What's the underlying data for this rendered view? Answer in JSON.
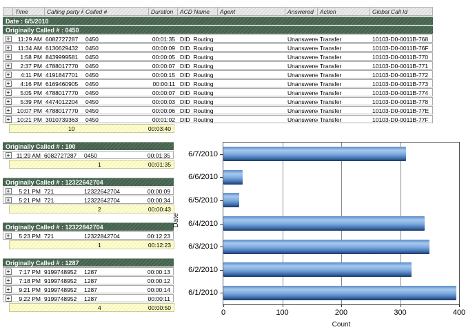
{
  "icons": {
    "expand": "+"
  },
  "colors": {
    "group_header_green": "#4a6a53",
    "summary_yellow": "#ffffcf",
    "table_header_gray": "#e7e7e7",
    "bar_blue": "#5b8cc8"
  },
  "main_table": {
    "columns": [
      "Time",
      "Calling party #",
      "Called #",
      "Duration",
      "ACD Name",
      "Agent",
      "Answered",
      "Action",
      "Global Call Id"
    ],
    "date_label": "Date : 6/5/2010",
    "group_label": "Originally Called # : 0450",
    "rows": [
      [
        "11:29 AM",
        "6082727287",
        "0450",
        "00:01:35",
        "DID_Routing",
        "",
        "Unanswered",
        "Transfer",
        "10103-D0-0011B-768"
      ],
      [
        "11:34 AM",
        "6130629432",
        "0450",
        "00:00:09",
        "DID_Routing",
        "",
        "Unanswered",
        "Transfer",
        "10103-D0-0011B-76F"
      ],
      [
        "1:58 PM",
        "8439999581",
        "0450",
        "00:00:05",
        "DID_Routing",
        "",
        "Unanswered",
        "Transfer",
        "10103-D0-0011B-770"
      ],
      [
        "2:37 PM",
        "4788017770",
        "0450",
        "00:00:07",
        "DID_Routing",
        "",
        "Unanswered",
        "Transfer",
        "10103-D0-0011B-771"
      ],
      [
        "4:11 PM",
        "4191847701",
        "0450",
        "00:00:15",
        "DID_Routing",
        "",
        "Unanswered",
        "Transfer",
        "10103-D0-0011B-772"
      ],
      [
        "4:16 PM",
        "6169460905",
        "0450",
        "00:00:11",
        "DID_Routing",
        "",
        "Unanswered",
        "Transfer",
        "10103-D0-0011B-773"
      ],
      [
        "5:05 PM",
        "4788017770",
        "0450",
        "00:00:07",
        "DID_Routing",
        "",
        "Unanswered",
        "Transfer",
        "10103-D0-0011B-774"
      ],
      [
        "5:39 PM",
        "4474012204",
        "0450",
        "00:00:03",
        "DID_Routing",
        "",
        "Unanswered",
        "Transfer",
        "10103-D0-0011B-778"
      ],
      [
        "10:07 PM",
        "4788017770",
        "0450",
        "00:00:06",
        "DID_Routing",
        "",
        "Unanswered",
        "Transfer",
        "10103-D0-0011B-77E"
      ],
      [
        "10:21 PM",
        "3010739363",
        "0450",
        "00:01:02",
        "DID_Routing",
        "",
        "Unanswered",
        "Transfer",
        "10103-D0-0011B-77F"
      ]
    ],
    "summary": {
      "count": "10",
      "duration": "00:03:40"
    }
  },
  "sections": [
    {
      "label": "Originally Called # : 100",
      "rows": [
        [
          "11:29 AM",
          "6082727287",
          "0450",
          "00:01:35"
        ]
      ],
      "summary": {
        "count": "1",
        "duration": "00:01:35"
      }
    },
    {
      "label": "Originally Called # : 12322642704",
      "rows": [
        [
          "5:21 PM",
          "721",
          "12322642704",
          "00:00:09"
        ],
        [
          "5:21 PM",
          "721",
          "12322642704",
          "00:00:34"
        ]
      ],
      "summary": {
        "count": "2",
        "duration": "00:00:43"
      }
    },
    {
      "label": "Originally Called # : 12322842704",
      "rows": [
        [
          "5:23 PM",
          "721",
          "12322842704",
          "00:12:23"
        ]
      ],
      "summary": {
        "count": "1",
        "duration": "00:12:23"
      }
    },
    {
      "label": "Originally Called # : 1287",
      "rows": [
        [
          "7:17 PM",
          "9199748952",
          "1287",
          "00:00:13"
        ],
        [
          "7:18 PM",
          "9199748952",
          "1287",
          "00:00:12"
        ],
        [
          "9:21 PM",
          "9199748952",
          "1287",
          "00:00:14"
        ],
        [
          "9:22 PM",
          "9199748952",
          "1287",
          "00:00:11"
        ]
      ],
      "summary": {
        "count": "4",
        "duration": "00:00:50"
      }
    }
  ],
  "chart_data": {
    "type": "bar",
    "orientation": "horizontal",
    "title": "",
    "categories": [
      "6/7/2010",
      "6/6/2010",
      "6/5/2010",
      "6/4/2010",
      "6/3/2010",
      "6/2/2010",
      "6/1/2010"
    ],
    "values": [
      310,
      33,
      27,
      342,
      350,
      319,
      395
    ],
    "xlabel": "Count",
    "ylabel": "Date",
    "xlim": [
      0,
      400
    ],
    "xticks": [
      0,
      100,
      200,
      300,
      400
    ],
    "grid": true,
    "legend": false,
    "bar_color": "#5b8cc8"
  }
}
